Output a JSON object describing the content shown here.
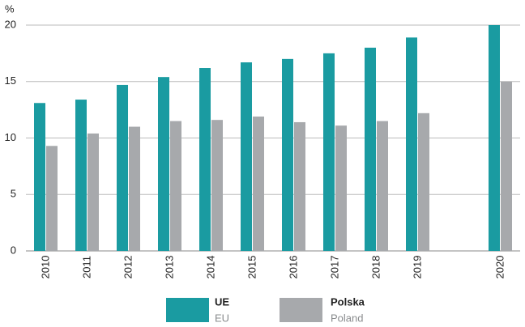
{
  "chart_data": {
    "type": "bar",
    "y_label": "%",
    "categories": [
      "2010",
      "2011",
      "2012",
      "2013",
      "2014",
      "2015",
      "2016",
      "2017",
      "2018",
      "2019",
      null,
      "2020"
    ],
    "series": [
      {
        "name": "UE",
        "name_en": "EU",
        "color": "#1a9ba1",
        "values": [
          13.1,
          13.4,
          14.7,
          15.4,
          16.2,
          16.7,
          17.0,
          17.5,
          18.0,
          18.9,
          null,
          20.0
        ]
      },
      {
        "name": "Polska",
        "name_en": "Poland",
        "color": "#a7a9ac",
        "values": [
          9.3,
          10.4,
          11.0,
          11.5,
          11.6,
          11.9,
          11.4,
          11.1,
          11.5,
          12.2,
          null,
          15.0
        ]
      }
    ],
    "ylim": [
      0,
      20
    ],
    "yticks": [
      0,
      5,
      10,
      15,
      20
    ],
    "grid": true
  }
}
